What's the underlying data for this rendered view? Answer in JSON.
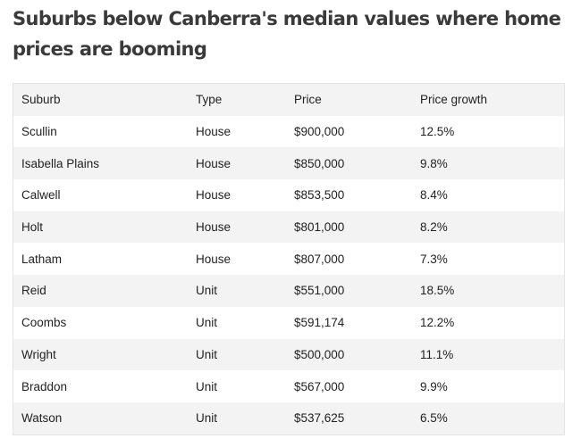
{
  "title": "Suburbs below Canberra's median values where home prices are booming",
  "table": {
    "headers": [
      "Suburb",
      "Type",
      "Price",
      "Price growth"
    ],
    "rows": [
      [
        "Scullin",
        "House",
        "$900,000",
        "12.5%"
      ],
      [
        "Isabella Plains",
        "House",
        "$850,000",
        "9.8%"
      ],
      [
        "Calwell",
        "House",
        "$853,500",
        "8.4%"
      ],
      [
        "Holt",
        "House",
        "$801,000",
        "8.2%"
      ],
      [
        "Latham",
        "House",
        "$807,000",
        "7.3%"
      ],
      [
        "Reid",
        "Unit",
        "$551,000",
        "18.5%"
      ],
      [
        "Coombs",
        "Unit",
        "$591,174",
        "12.2%"
      ],
      [
        "Wright",
        "Unit",
        "$500,000",
        "11.1%"
      ],
      [
        "Braddon",
        "Unit",
        "$567,000",
        "9.9%"
      ],
      [
        "Watson",
        "Unit",
        "$537,625",
        "6.5%"
      ]
    ]
  },
  "colors": {
    "title": "#3a3a3a",
    "text": "#222222",
    "stripe": "#f3f3f3",
    "border": "#e4e4e4"
  }
}
